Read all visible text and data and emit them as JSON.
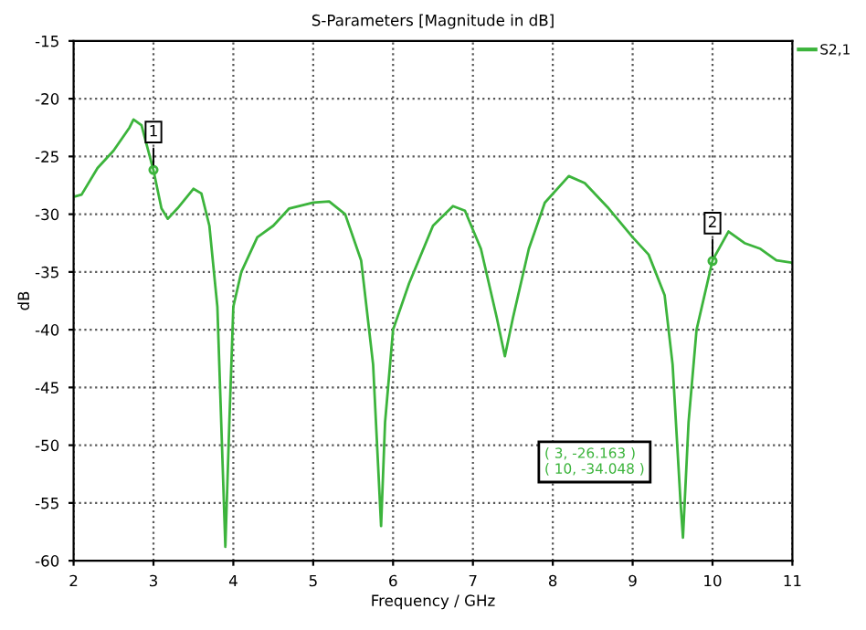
{
  "chart_data": {
    "type": "line",
    "title": "S-Parameters [Magnitude in dB]",
    "xlabel": "Frequency / GHz",
    "ylabel": "dB",
    "xlim": [
      2,
      11
    ],
    "xticks": [
      2,
      3,
      4,
      5,
      6,
      7,
      8,
      9,
      10,
      11
    ],
    "ylim": [
      -60,
      -15
    ],
    "yticks": [
      -60,
      -55,
      -50,
      -45,
      -40,
      -35,
      -30,
      -25,
      -20,
      -15
    ],
    "grid": true,
    "legend": "top right",
    "line_style": "solid",
    "series": [
      {
        "name": "S2,1",
        "color": "#3cb43c",
        "x": [
          2,
          2.1,
          2.3,
          2.5,
          2.7,
          2.75,
          2.85,
          3,
          3.1,
          3.18,
          3.3,
          3.5,
          3.6,
          3.7,
          3.8,
          3.9,
          3.95,
          4,
          4.1,
          4.3,
          4.5,
          4.7,
          5,
          5.2,
          5.4,
          5.6,
          5.75,
          5.85,
          5.9,
          6,
          6.2,
          6.5,
          6.75,
          6.9,
          7.1,
          7.3,
          7.4,
          7.5,
          7.7,
          7.9,
          8.2,
          8.4,
          8.7,
          9,
          9.2,
          9.4,
          9.5,
          9.6,
          9.63,
          9.7,
          9.8,
          10,
          10.2,
          10.4,
          10.6,
          10.8,
          11
        ],
        "values": [
          -28.5,
          -28.3,
          -26,
          -24.5,
          -22.5,
          -21.8,
          -22.3,
          -26.2,
          -29.5,
          -30.4,
          -29.5,
          -27.8,
          -28.2,
          -31,
          -38,
          -58.8,
          -48,
          -38,
          -35,
          -32,
          -31,
          -29.5,
          -29,
          -28.9,
          -30,
          -34,
          -43,
          -57,
          -48,
          -40,
          -36,
          -31,
          -29.3,
          -29.7,
          -33,
          -39,
          -42.3,
          -39,
          -33,
          -29,
          -26.7,
          -27.3,
          -29.5,
          -32,
          -33.5,
          -37,
          -43,
          -55,
          -58,
          -48,
          -40,
          -34,
          -31.5,
          -32.5,
          -33,
          -34,
          -34.2
        ]
      }
    ],
    "annotations": [
      {
        "text": "1",
        "x": 3,
        "y": -26.163
      },
      {
        "text": "2",
        "x": 10,
        "y": -34.048
      },
      "( 3, -26.163 )",
      "( 10, -34.048 )"
    ]
  }
}
